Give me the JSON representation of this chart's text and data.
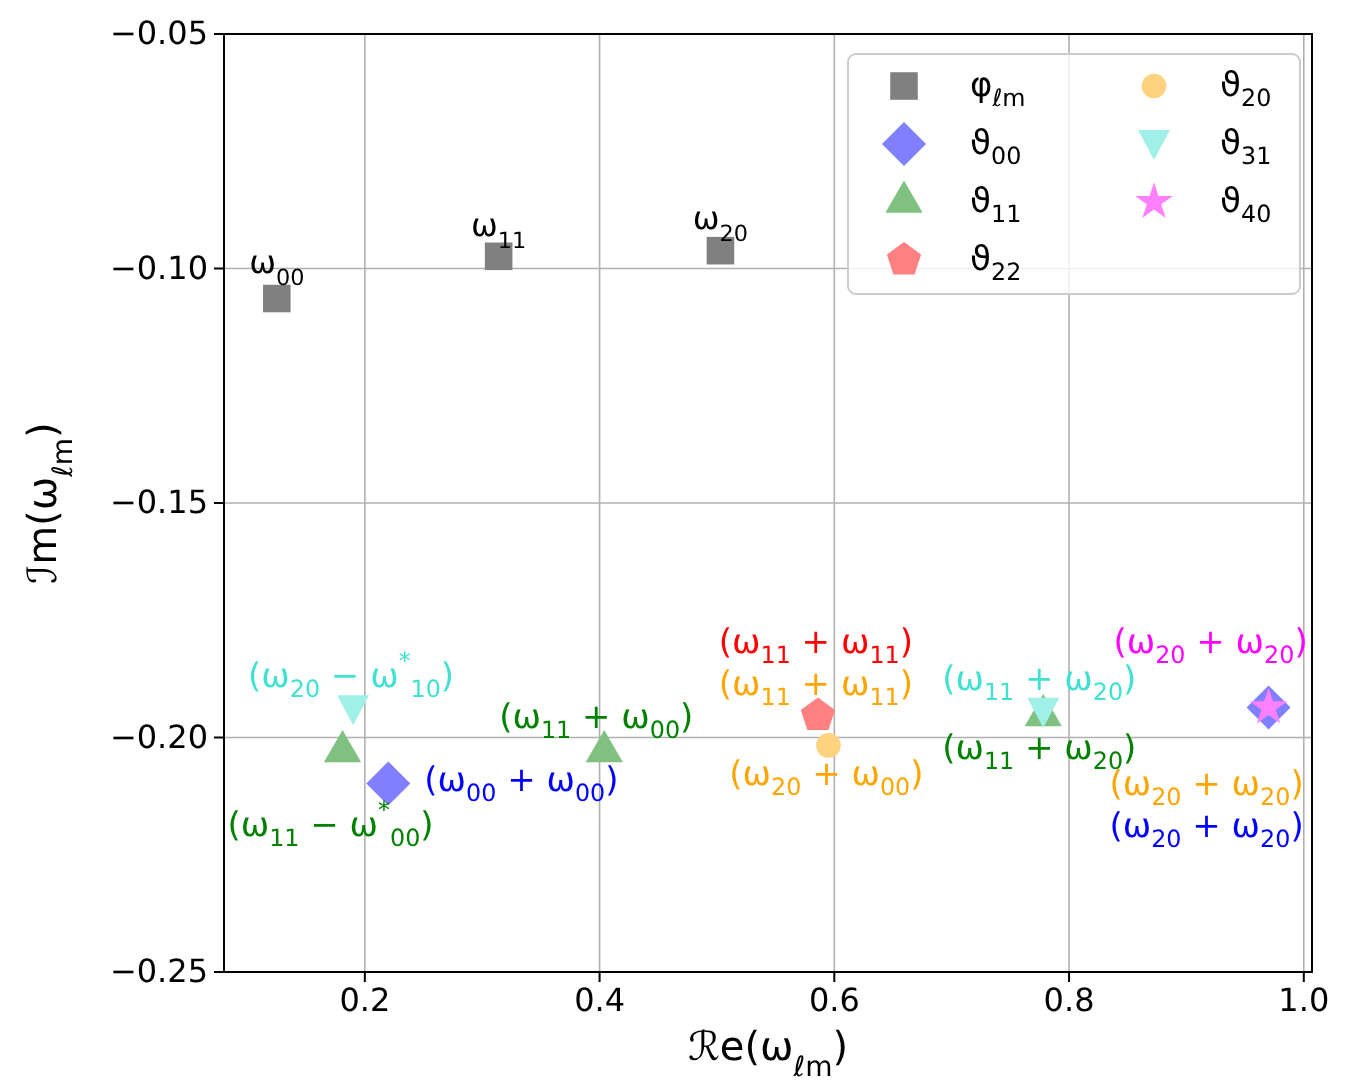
{
  "chart_data": {
    "type": "scatter",
    "xlabel": "ℛe(ω$_{ℓm}$)",
    "ylabel": "ℐm(ω$_{ℓm}$)",
    "xlim": [
      0.08,
      1.007
    ],
    "ylim": [
      -0.25,
      -0.05
    ],
    "xticks": [
      {
        "value": 0.2,
        "label": "0.2"
      },
      {
        "value": 0.4,
        "label": "0.4"
      },
      {
        "value": 0.6,
        "label": "0.6"
      },
      {
        "value": 0.8,
        "label": "0.8"
      },
      {
        "value": 1,
        "label": "1.0"
      }
    ],
    "yticks": [
      {
        "value": -0.25,
        "label": "−0.25"
      },
      {
        "value": -0.2,
        "label": "−0.20"
      },
      {
        "value": -0.15,
        "label": "−0.15"
      },
      {
        "value": -0.1,
        "label": "−0.10"
      },
      {
        "value": -0.05,
        "label": "−0.05"
      }
    ],
    "grid": true,
    "legend": "top right",
    "series": [
      {
        "name": "φ$_{ℓm}$",
        "color": "#808080",
        "marker": "square",
        "x": [
          0.125,
          0.314,
          0.503
        ],
        "values": [
          -0.1064,
          -0.0974,
          -0.0962
        ]
      },
      {
        "name": "ϑ$_{00}$",
        "color": "#8080ff",
        "marker": "diamond",
        "x": [
          0.22,
          0.97
        ],
        "values": [
          -0.2098,
          -0.1936
        ]
      },
      {
        "name": "ϑ$_{11}$",
        "color": "#80c080",
        "marker": "triangle",
        "x": [
          0.181,
          0.404,
          0.778
        ],
        "values": [
          -0.203,
          -0.203,
          -0.1953
        ]
      },
      {
        "name": "ϑ$_{22}$",
        "color": "#ff8080",
        "x": [
          0.586
        ],
        "values": [
          -0.1953
        ]
      },
      {
        "name": "ϑ$_{20}$",
        "color": "#ffd280",
        "marker": "circle",
        "x": [
          0.595
        ],
        "values": [
          -0.2017
        ]
      },
      {
        "name": "ϑ$_{31}$",
        "color": "#a0f0e8",
        "marker": "triangle-down",
        "x": [
          0.19,
          0.778
        ],
        "values": [
          -0.194,
          -0.1945
        ]
      },
      {
        "name": "ϑ$_{40}$",
        "color": "#ff80ff",
        "marker": "star",
        "x": [
          0.97
        ],
        "values": [
          -0.1936
        ]
      }
    ],
    "annotations": [
      {
        "text": "ω$_{00}$",
        "x": 0.125,
        "y": -0.1064
      },
      {
        "text": "ω$_{11}$",
        "x": 0.314,
        "y": -0.0974
      },
      {
        "text": "ω$_{20}$",
        "x": 0.503,
        "y": -0.0962
      },
      {
        "text": "(ω$_{00}$ + ω$_{00}$)",
        "x": 0.22,
        "y": -0.2098
      },
      {
        "text": "(ω$_{20}$ + ω$_{20}$)",
        "x": 0.97,
        "y": -0.1936
      },
      {
        "text": "(ω$_{11}$ − ω$^{*}$$_{00}$)",
        "x": 0.181,
        "y": -0.203
      },
      {
        "text": "(ω$_{11}$ + ω$_{00}$)",
        "x": 0.404,
        "y": -0.203
      },
      {
        "text": "(ω$_{11}$ + ω$_{20}$)",
        "x": 0.778,
        "y": -0.1953
      },
      {
        "text": "(ω$_{11}$ + ω$_{11}$)",
        "x": 0.586,
        "y": -0.1953
      },
      {
        "text": "(ω$_{11}$ + ω$_{11}$)",
        "x": 0.586,
        "y": -0.1953
      },
      {
        "text": "(ω$_{20}$ + ω$_{00}$)",
        "x": 0.595,
        "y": -0.2017
      },
      {
        "text": "(ω$_{20}$ + ω$_{20}$)",
        "x": 0.97,
        "y": -0.1936
      },
      {
        "text": "(ω$_{20}$ − ω$^{*}$$_{10}$)",
        "x": 0.19,
        "y": -0.194
      },
      {
        "text": "(ω$_{11}$ + ω$_{20}$)",
        "x": 0.778,
        "y": -0.1945
      },
      {
        "text": "(ω$_{20}$ + ω$_{20}$)",
        "x": 0.97,
        "y": -0.1936
      }
    ]
  }
}
